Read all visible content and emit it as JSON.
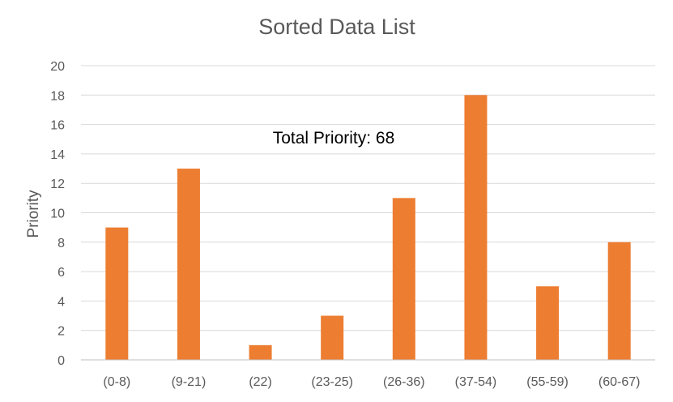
{
  "chart_data": {
    "type": "bar",
    "title": "Sorted Data List",
    "ylabel": "Priority",
    "xlabel": "",
    "annotation": "Total Priority: 68",
    "categories": [
      "(0-8)",
      "(9-21)",
      "(22)",
      "(23-25)",
      "(26-36)",
      "(37-54)",
      "(55-59)",
      "(60-67)"
    ],
    "values": [
      9,
      13,
      1,
      3,
      11,
      18,
      5,
      8
    ],
    "ylim": [
      0,
      20
    ],
    "yticks": [
      0,
      2,
      4,
      6,
      8,
      10,
      12,
      14,
      16,
      18,
      20
    ],
    "grid": true,
    "legend": "none",
    "colors": {
      "bar": "#ED7D31",
      "grid": "#D9D9D9",
      "axis": "#BFBFBF",
      "title": "#595959",
      "tick_label": "#595959",
      "annotation": "#000000"
    }
  }
}
